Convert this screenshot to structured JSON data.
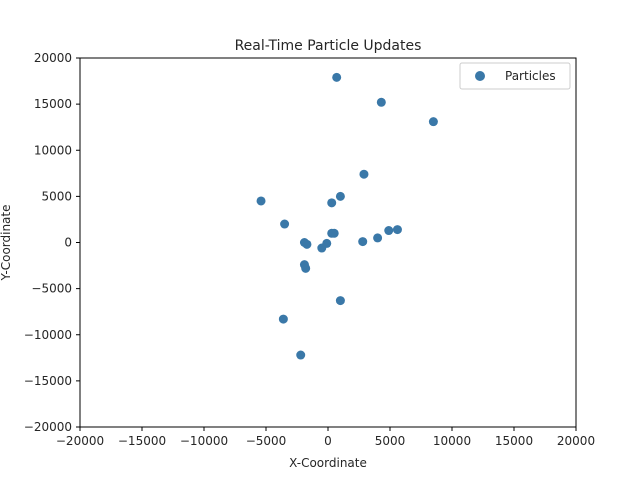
{
  "chart_data": {
    "type": "scatter",
    "title": "Real-Time Particle Updates",
    "xlabel": "X-Coordinate",
    "ylabel": "Y-Coordinate",
    "xlim": [
      -20000,
      20000
    ],
    "ylim": [
      -20000,
      20000
    ],
    "xticks": [
      -20000,
      -15000,
      -10000,
      -5000,
      0,
      5000,
      10000,
      15000,
      20000
    ],
    "yticks": [
      -20000,
      -15000,
      -10000,
      -5000,
      0,
      5000,
      10000,
      15000,
      20000
    ],
    "xtick_labels": [
      "−20000",
      "−15000",
      "−10000",
      "−5000",
      "0",
      "5000",
      "10000",
      "15000",
      "20000"
    ],
    "ytick_labels": [
      "−20000",
      "−15000",
      "−10000",
      "−5000",
      "0",
      "5000",
      "10000",
      "15000",
      "20000"
    ],
    "grid": false,
    "legend_position": "top-right",
    "series": [
      {
        "name": "Particles",
        "color": "#3a78a8",
        "points": [
          [
            700,
            17900
          ],
          [
            4300,
            15200
          ],
          [
            8500,
            13100
          ],
          [
            2900,
            7400
          ],
          [
            1000,
            5000
          ],
          [
            300,
            4300
          ],
          [
            -5400,
            4500
          ],
          [
            -3500,
            2000
          ],
          [
            300,
            1000
          ],
          [
            500,
            1000
          ],
          [
            4900,
            1300
          ],
          [
            5600,
            1400
          ],
          [
            4000,
            500
          ],
          [
            2800,
            100
          ],
          [
            -1900,
            0
          ],
          [
            -1700,
            -200
          ],
          [
            -100,
            -100
          ],
          [
            -500,
            -600
          ],
          [
            -1900,
            -2400
          ],
          [
            -1800,
            -2800
          ],
          [
            1000,
            -6300
          ],
          [
            -3600,
            -8300
          ],
          [
            -2200,
            -12200
          ]
        ]
      }
    ]
  }
}
